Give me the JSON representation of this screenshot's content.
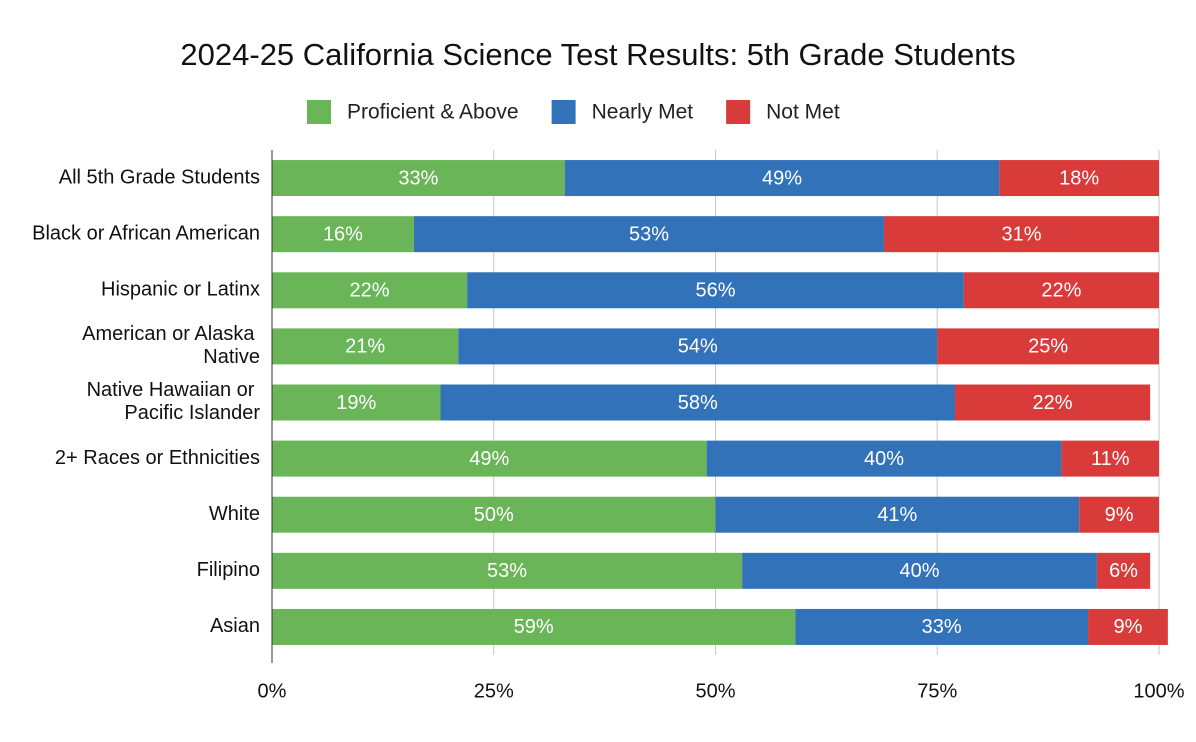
{
  "chart_data": {
    "type": "stacked_bar_horizontal",
    "title": "2024-25 California Science Test Results: 5th Grade Students",
    "categories": [
      "All 5th Grade Students",
      "Black or African American",
      "Hispanic or Latinx",
      "American or Alaska Native",
      "Native Hawaiian or Pacific Islander",
      "2+ Races or Ethnicities",
      "White",
      "Filipino",
      "Asian"
    ],
    "series": [
      {
        "name": "Proficient & Above",
        "color": "#6ab558",
        "values": [
          33,
          16,
          22,
          21,
          19,
          49,
          50,
          53,
          59
        ],
        "value_labels": [
          "33%",
          "16%",
          "22%",
          "21%",
          "19%",
          "49%",
          "50%",
          "53%",
          "59%"
        ]
      },
      {
        "name": "Nearly Met",
        "color": "#3272b8",
        "values": [
          49,
          53,
          56,
          54,
          58,
          40,
          41,
          40,
          33
        ],
        "value_labels": [
          "49%",
          "53%",
          "56%",
          "54%",
          "58%",
          "40%",
          "41%",
          "40%",
          "33%"
        ]
      },
      {
        "name": "Not Met",
        "color": "#d93b3b",
        "values": [
          18,
          31,
          22,
          25,
          22,
          11,
          9,
          6,
          9
        ],
        "value_labels": [
          "18%",
          "31%",
          "22%",
          "25%",
          "22%",
          "11%",
          "9%",
          "6%",
          "9%"
        ]
      }
    ],
    "xlim": [
      0,
      100
    ],
    "xticks": [
      {
        "value": 0,
        "label": "0%"
      },
      {
        "value": 25,
        "label": "25%"
      },
      {
        "value": 50,
        "label": "50%"
      },
      {
        "value": 75,
        "label": "75%"
      },
      {
        "value": 100,
        "label": "100%"
      }
    ],
    "grid": true,
    "legend": "top"
  }
}
